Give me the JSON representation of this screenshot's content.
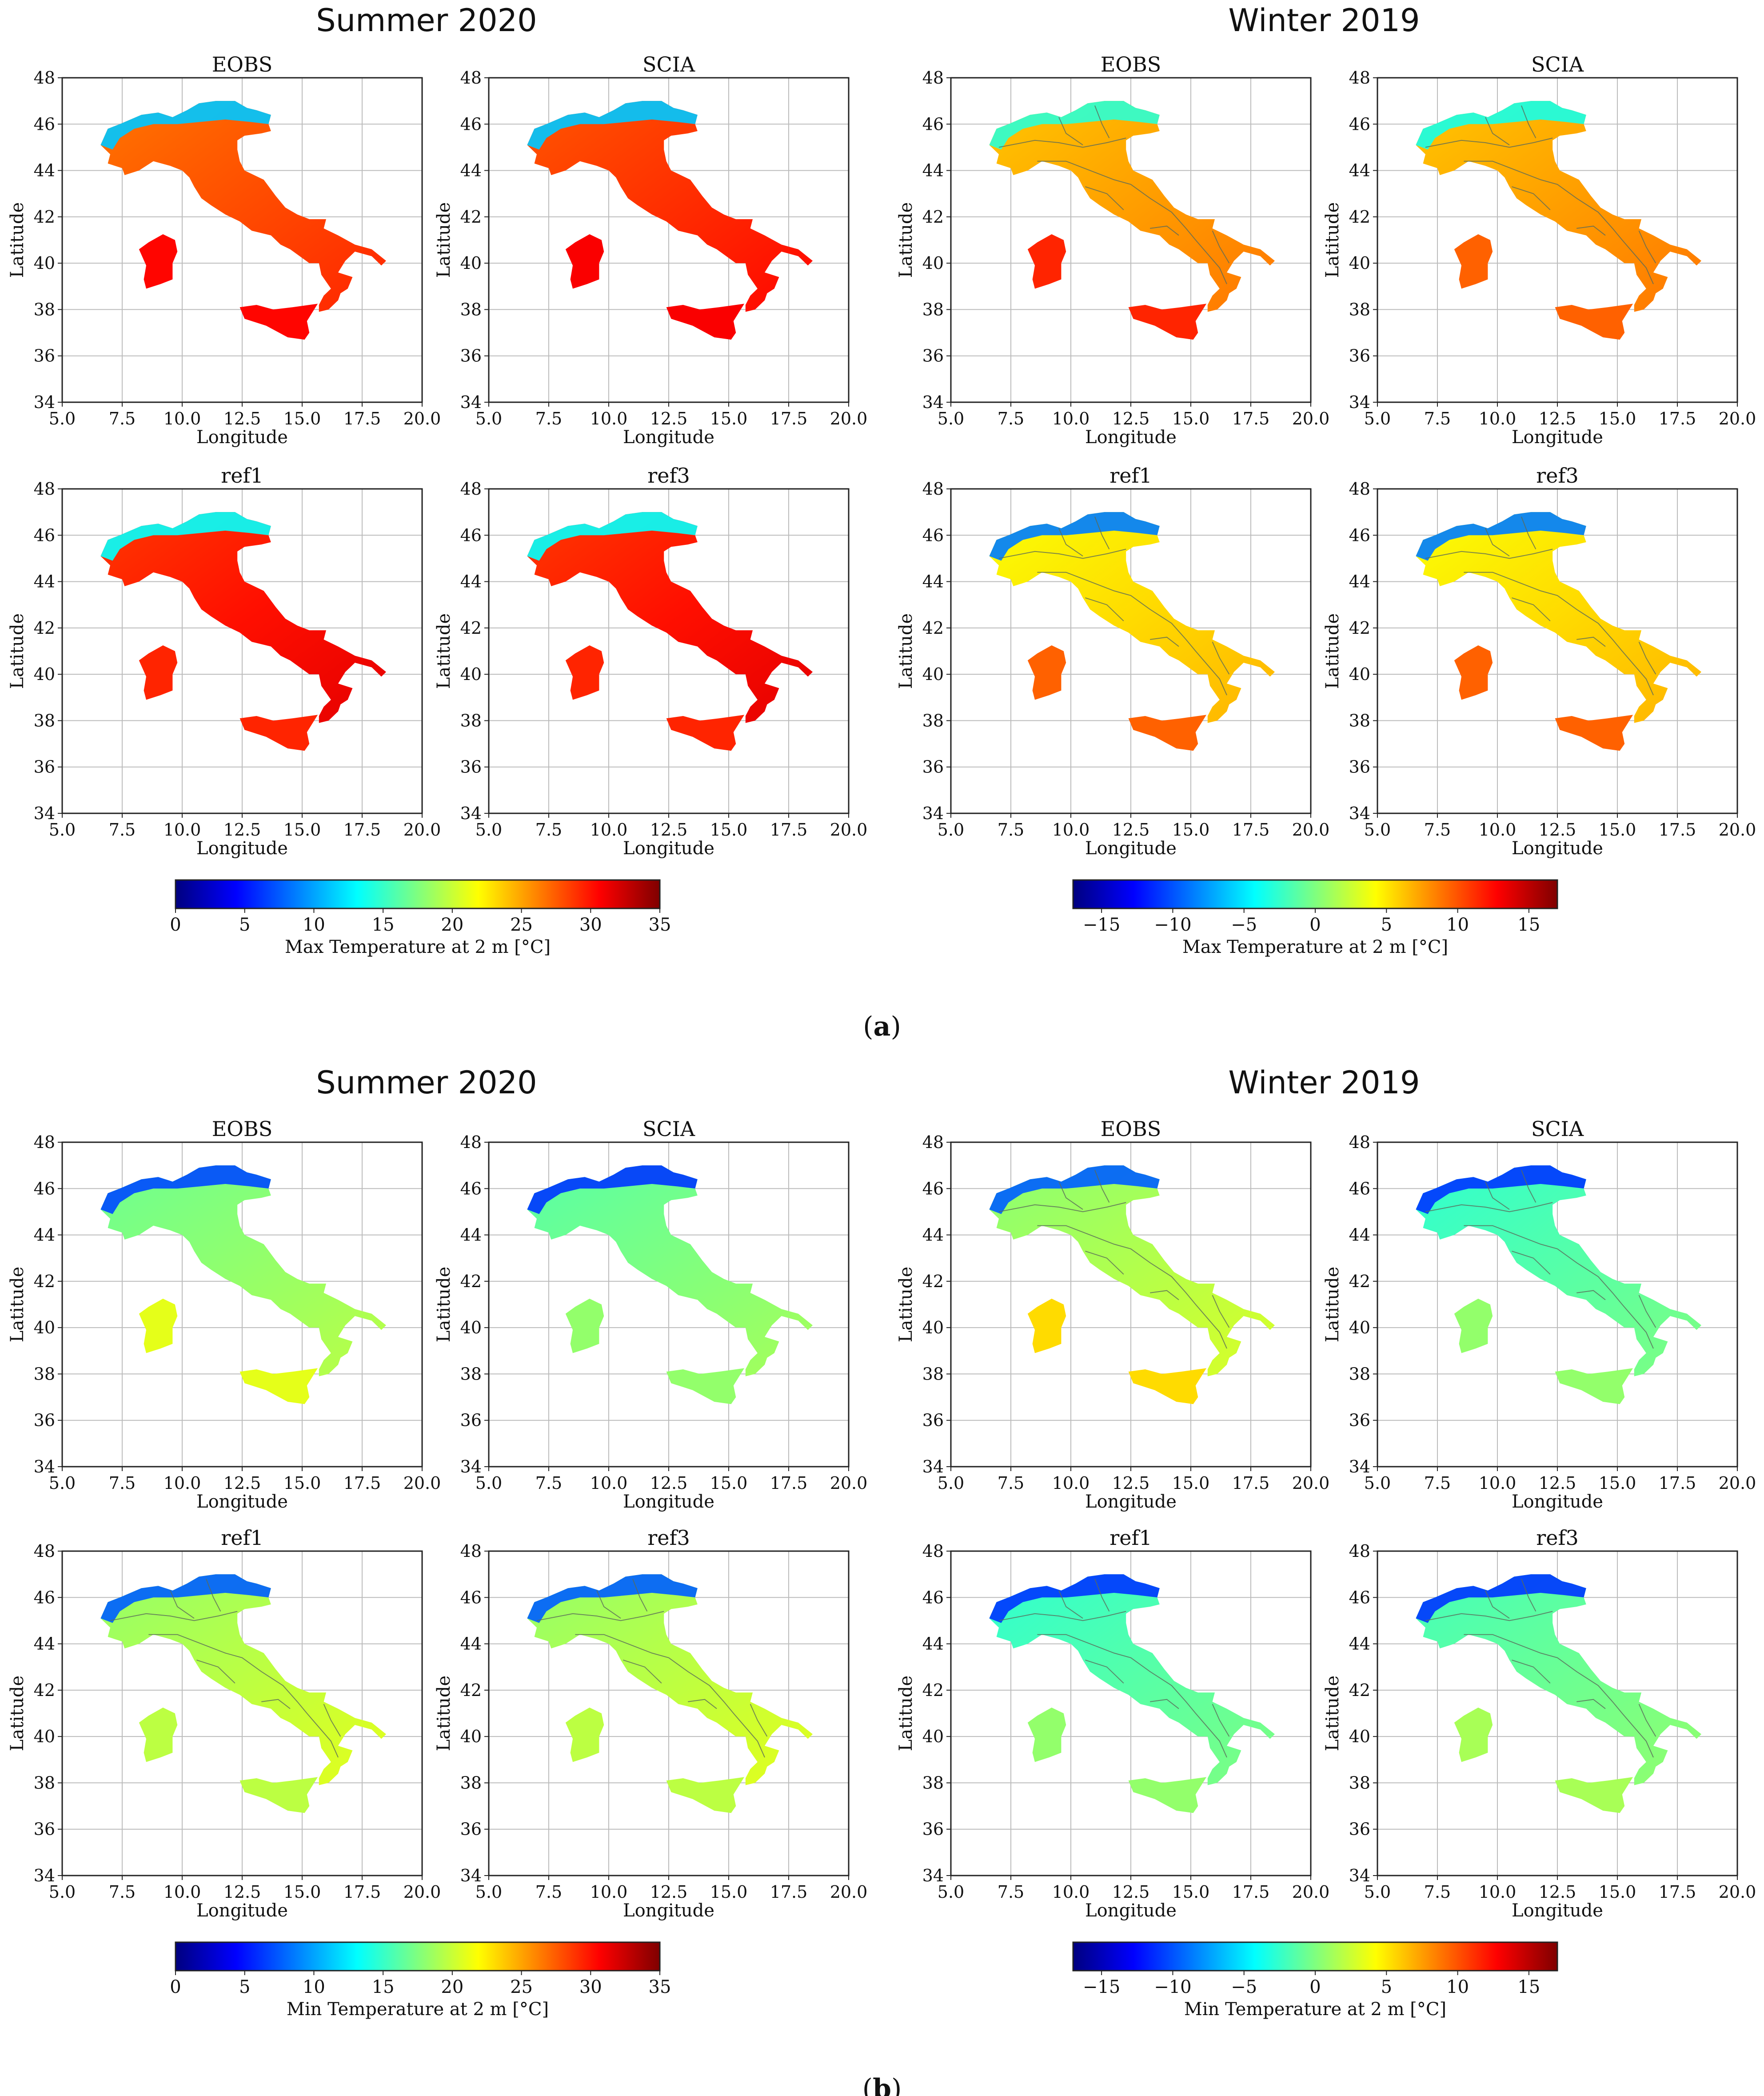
{
  "panels": [
    {
      "label_open": "(",
      "label_letter": "a",
      "label_close": ")",
      "variable": "Max Temperature at 2 m [°C]",
      "groups": [
        {
          "title": "Summer 2020",
          "colorbar": {
            "label": "Max Temperature at 2 m [°C]",
            "min": 0,
            "max": 35,
            "ticks": [
              0,
              5,
              10,
              15,
              20,
              25,
              30,
              35
            ],
            "tick_labels": [
              "0",
              "5",
              "10",
              "15",
              "20",
              "25",
              "30",
              "35"
            ]
          },
          "maps": [
            {
              "title": "EOBS",
              "tone": 0.8,
              "alpine_tone": 0.32,
              "island_tone": 0.87,
              "boundaries": false
            },
            {
              "title": "SCIA",
              "tone": 0.83,
              "alpine_tone": 0.32,
              "island_tone": 0.88,
              "boundaries": false
            },
            {
              "title": "ref1",
              "tone": 0.86,
              "alpine_tone": 0.38,
              "island_tone": 0.84,
              "boundaries": false
            },
            {
              "title": "ref3",
              "tone": 0.86,
              "alpine_tone": 0.38,
              "island_tone": 0.84,
              "boundaries": false
            }
          ]
        },
        {
          "title": "Winter 2019",
          "colorbar": {
            "label": "Max Temperature at 2 m [°C]",
            "min": -17,
            "max": 17,
            "ticks": [
              -15,
              -10,
              -5,
              0,
              5,
              10,
              15
            ],
            "tick_labels": [
              "−15",
              "−10",
              "−5",
              "0",
              "5",
              "10",
              "15"
            ]
          },
          "maps": [
            {
              "title": "EOBS",
              "tone": 0.72,
              "alpine_tone": 0.42,
              "island_tone": 0.84,
              "boundaries": true
            },
            {
              "title": "SCIA",
              "tone": 0.72,
              "alpine_tone": 0.4,
              "island_tone": 0.78,
              "boundaries": true
            },
            {
              "title": "ref1",
              "tone": 0.66,
              "alpine_tone": 0.25,
              "island_tone": 0.78,
              "boundaries": true
            },
            {
              "title": "ref3",
              "tone": 0.66,
              "alpine_tone": 0.25,
              "island_tone": 0.78,
              "boundaries": true
            }
          ]
        }
      ]
    },
    {
      "label_open": "(",
      "label_letter": "b",
      "label_close": ")",
      "variable": "Min Temperature at 2 m [°C]",
      "groups": [
        {
          "title": "Summer 2020",
          "colorbar": {
            "label": "Min Temperature at 2 m [°C]",
            "min": 0,
            "max": 35,
            "ticks": [
              0,
              5,
              10,
              15,
              20,
              25,
              30,
              35
            ],
            "tick_labels": [
              "0",
              "5",
              "10",
              "15",
              "20",
              "25",
              "30",
              "35"
            ]
          },
          "maps": [
            {
              "title": "EOBS",
              "tone": 0.52,
              "alpine_tone": 0.2,
              "island_tone": 0.6,
              "boundaries": false
            },
            {
              "title": "SCIA",
              "tone": 0.5,
              "alpine_tone": 0.18,
              "island_tone": 0.52,
              "boundaries": false
            },
            {
              "title": "ref1",
              "tone": 0.56,
              "alpine_tone": 0.22,
              "island_tone": 0.56,
              "boundaries": true
            },
            {
              "title": "ref3",
              "tone": 0.56,
              "alpine_tone": 0.22,
              "island_tone": 0.56,
              "boundaries": true
            }
          ]
        },
        {
          "title": "Winter 2019",
          "colorbar": {
            "label": "Min Temperature at 2 m [°C]",
            "min": -17,
            "max": 17,
            "ticks": [
              -15,
              -10,
              -5,
              0,
              5,
              10,
              15
            ],
            "tick_labels": [
              "−15",
              "−10",
              "−5",
              "0",
              "5",
              "10",
              "15"
            ]
          },
          "maps": [
            {
              "title": "EOBS",
              "tone": 0.55,
              "alpine_tone": 0.22,
              "island_tone": 0.66,
              "boundaries": true
            },
            {
              "title": "SCIA",
              "tone": 0.46,
              "alpine_tone": 0.18,
              "island_tone": 0.52,
              "boundaries": true
            },
            {
              "title": "ref1",
              "tone": 0.46,
              "alpine_tone": 0.18,
              "island_tone": 0.52,
              "boundaries": true
            },
            {
              "title": "ref3",
              "tone": 0.48,
              "alpine_tone": 0.18,
              "island_tone": 0.54,
              "boundaries": true
            }
          ]
        }
      ]
    }
  ],
  "axes": {
    "xlabel": "Longitude",
    "ylabel": "Latitude",
    "xlim": [
      5,
      20
    ],
    "ylim": [
      34,
      48
    ],
    "xticks": [
      5.0,
      7.5,
      10.0,
      12.5,
      15.0,
      17.5,
      20.0
    ],
    "xtick_labels": [
      "5.0",
      "7.5",
      "10.0",
      "12.5",
      "15.0",
      "17.5",
      "20.0"
    ],
    "yticks": [
      34,
      36,
      38,
      40,
      42,
      44,
      46,
      48
    ],
    "ytick_labels": [
      "34",
      "36",
      "38",
      "40",
      "42",
      "44",
      "46",
      "48"
    ],
    "grid": true
  },
  "colors": {
    "jet": [
      "#00007f",
      "#0000ff",
      "#007fff",
      "#00ffff",
      "#7fff7f",
      "#ffff00",
      "#ff7f00",
      "#ff0000",
      "#7f0000"
    ],
    "boundary": "#5a6a5a",
    "grid": "#bbbbbb"
  },
  "geo": {
    "mainland": [
      [
        6.6,
        45.1
      ],
      [
        6.9,
        45.8
      ],
      [
        7.4,
        46.0
      ],
      [
        8.3,
        46.4
      ],
      [
        9.0,
        46.5
      ],
      [
        9.6,
        46.3
      ],
      [
        10.2,
        46.6
      ],
      [
        10.7,
        46.9
      ],
      [
        11.4,
        47.0
      ],
      [
        12.2,
        47.0
      ],
      [
        12.7,
        46.7
      ],
      [
        13.1,
        46.6
      ],
      [
        13.7,
        46.4
      ],
      [
        13.6,
        46.0
      ],
      [
        13.7,
        45.7
      ],
      [
        13.3,
        45.6
      ],
      [
        12.6,
        45.5
      ],
      [
        12.3,
        45.3
      ],
      [
        12.3,
        44.9
      ],
      [
        12.4,
        44.4
      ],
      [
        12.6,
        44.0
      ],
      [
        13.4,
        43.6
      ],
      [
        13.9,
        42.9
      ],
      [
        14.3,
        42.4
      ],
      [
        14.8,
        42.1
      ],
      [
        15.3,
        41.9
      ],
      [
        16.0,
        41.9
      ],
      [
        15.9,
        41.5
      ],
      [
        16.5,
        41.2
      ],
      [
        17.2,
        40.8
      ],
      [
        17.9,
        40.6
      ],
      [
        18.5,
        40.1
      ],
      [
        18.3,
        39.9
      ],
      [
        17.9,
        40.3
      ],
      [
        17.2,
        40.5
      ],
      [
        16.8,
        40.1
      ],
      [
        16.5,
        39.6
      ],
      [
        17.1,
        39.4
      ],
      [
        16.9,
        38.9
      ],
      [
        16.6,
        38.7
      ],
      [
        16.5,
        38.4
      ],
      [
        16.1,
        38.0
      ],
      [
        15.7,
        37.9
      ],
      [
        15.7,
        38.2
      ],
      [
        15.9,
        38.6
      ],
      [
        16.2,
        38.9
      ],
      [
        15.8,
        39.5
      ],
      [
        15.7,
        40.0
      ],
      [
        15.3,
        40.0
      ],
      [
        14.9,
        40.3
      ],
      [
        14.5,
        40.6
      ],
      [
        14.1,
        40.8
      ],
      [
        13.7,
        41.2
      ],
      [
        12.9,
        41.4
      ],
      [
        12.4,
        41.8
      ],
      [
        11.8,
        42.1
      ],
      [
        11.2,
        42.5
      ],
      [
        10.8,
        42.8
      ],
      [
        10.5,
        43.3
      ],
      [
        10.3,
        43.7
      ],
      [
        10.0,
        44.0
      ],
      [
        9.5,
        44.2
      ],
      [
        8.8,
        44.4
      ],
      [
        8.2,
        44.0
      ],
      [
        7.6,
        43.8
      ],
      [
        7.5,
        44.1
      ],
      [
        6.9,
        44.3
      ],
      [
        7.0,
        44.7
      ]
    ],
    "alps": [
      [
        6.6,
        45.1
      ],
      [
        6.9,
        45.8
      ],
      [
        7.4,
        46.0
      ],
      [
        8.3,
        46.4
      ],
      [
        9.0,
        46.5
      ],
      [
        9.6,
        46.3
      ],
      [
        10.2,
        46.6
      ],
      [
        10.7,
        46.9
      ],
      [
        11.4,
        47.0
      ],
      [
        12.2,
        47.0
      ],
      [
        12.7,
        46.7
      ],
      [
        13.1,
        46.6
      ],
      [
        13.7,
        46.4
      ],
      [
        13.6,
        46.0
      ],
      [
        12.8,
        46.1
      ],
      [
        11.8,
        46.2
      ],
      [
        10.8,
        46.1
      ],
      [
        9.8,
        46.0
      ],
      [
        8.8,
        46.0
      ],
      [
        8.0,
        45.8
      ],
      [
        7.4,
        45.4
      ],
      [
        7.1,
        44.9
      ]
    ],
    "sardinia": [
      [
        9.2,
        41.25
      ],
      [
        9.7,
        41.0
      ],
      [
        9.8,
        40.5
      ],
      [
        9.6,
        40.0
      ],
      [
        9.6,
        39.3
      ],
      [
        9.1,
        39.1
      ],
      [
        8.5,
        38.9
      ],
      [
        8.4,
        39.3
      ],
      [
        8.5,
        39.9
      ],
      [
        8.2,
        40.6
      ],
      [
        8.6,
        40.9
      ]
    ],
    "sicily": [
      [
        12.4,
        38.1
      ],
      [
        13.1,
        38.2
      ],
      [
        13.8,
        38.0
      ],
      [
        14.6,
        38.1
      ],
      [
        15.65,
        38.25
      ],
      [
        15.2,
        37.5
      ],
      [
        15.3,
        37.0
      ],
      [
        15.1,
        36.7
      ],
      [
        14.4,
        36.8
      ],
      [
        13.5,
        37.3
      ],
      [
        12.6,
        37.6
      ]
    ],
    "boundary_lines": [
      [
        [
          7.0,
          45.0
        ],
        [
          8.5,
          45.3
        ],
        [
          9.5,
          45.2
        ],
        [
          10.5,
          45.0
        ],
        [
          11.5,
          45.2
        ],
        [
          12.3,
          45.4
        ]
      ],
      [
        [
          9.5,
          46.3
        ],
        [
          9.8,
          45.6
        ],
        [
          10.5,
          45.1
        ]
      ],
      [
        [
          11.0,
          46.8
        ],
        [
          11.3,
          46.0
        ],
        [
          11.6,
          45.4
        ]
      ],
      [
        [
          8.6,
          44.4
        ],
        [
          9.8,
          44.4
        ],
        [
          10.8,
          44.0
        ],
        [
          11.8,
          43.6
        ],
        [
          12.5,
          43.4
        ],
        [
          13.3,
          42.8
        ],
        [
          14.2,
          42.2
        ],
        [
          14.8,
          41.5
        ],
        [
          15.2,
          41.0
        ],
        [
          15.7,
          40.4
        ],
        [
          16.2,
          39.8
        ],
        [
          16.5,
          39.1
        ]
      ],
      [
        [
          10.6,
          43.3
        ],
        [
          11.5,
          43.0
        ],
        [
          12.2,
          42.3
        ]
      ],
      [
        [
          13.3,
          41.5
        ],
        [
          14.0,
          41.6
        ],
        [
          14.5,
          41.2
        ]
      ],
      [
        [
          15.9,
          41.4
        ],
        [
          16.2,
          40.7
        ],
        [
          16.6,
          40.0
        ]
      ]
    ]
  }
}
